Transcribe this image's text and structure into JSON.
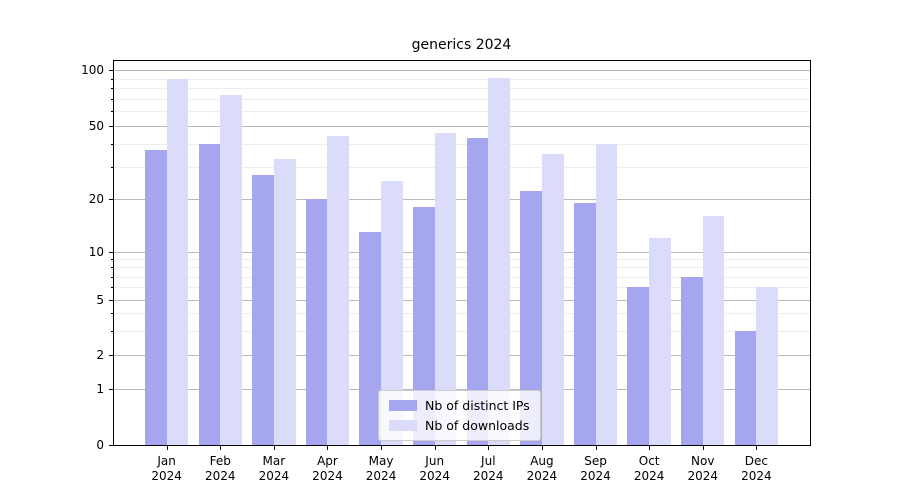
{
  "title": "generics 2024",
  "legend": {
    "items": [
      {
        "label": "Nb of distinct IPs",
        "color": "#a5a5f0"
      },
      {
        "label": "Nb of downloads",
        "color": "#dbdbfa"
      }
    ]
  },
  "chart_data": {
    "type": "bar",
    "title": "generics 2024",
    "categories": [
      "Jan 2024",
      "Feb 2024",
      "Mar 2024",
      "Apr 2024",
      "May 2024",
      "Jun 2024",
      "Jul 2024",
      "Aug 2024",
      "Sep 2024",
      "Oct 2024",
      "Nov 2024",
      "Dec 2024"
    ],
    "series": [
      {
        "name": "Nb of distinct IPs",
        "color": "#a5a5f0",
        "values": [
          37,
          40,
          27,
          20,
          13,
          18,
          43,
          22,
          19,
          6,
          7,
          3
        ]
      },
      {
        "name": "Nb of downloads",
        "color": "#dbdbfa",
        "values": [
          90,
          73,
          33,
          44,
          25,
          46,
          91,
          35,
          40,
          12,
          16,
          6
        ]
      }
    ],
    "ylabel": "",
    "xlabel": "",
    "yticks": [
      0,
      1,
      2,
      5,
      10,
      20,
      50,
      100
    ],
    "yticks_minor": [
      3,
      4,
      6,
      7,
      8,
      9,
      30,
      40,
      60,
      70,
      80,
      90
    ],
    "ylim": [
      0,
      110
    ],
    "yscale": "log above 1, linear 0-1 (symlog-like)",
    "grid": "both",
    "legend_position": "lower center"
  }
}
